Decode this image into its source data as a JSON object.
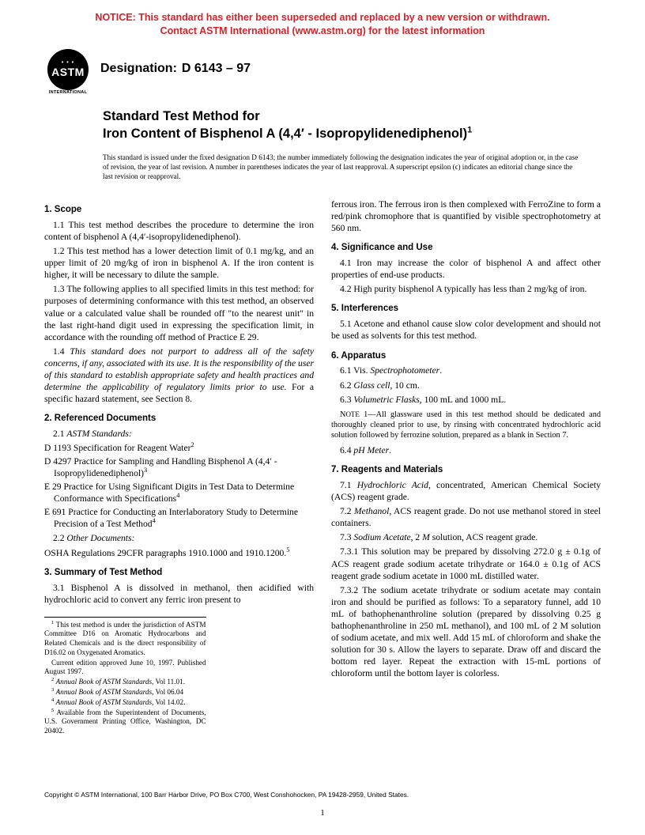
{
  "notice": {
    "line1": "NOTICE: This standard has either been superseded and replaced by a new version or withdrawn.",
    "line2": "Contact ASTM International (www.astm.org) for the latest information",
    "color": "#d2232a"
  },
  "logo": {
    "astm": "ASTM",
    "intl": "INTERNATIONAL"
  },
  "designation": {
    "label": "Designation:",
    "code": "D 6143 – 97"
  },
  "title": {
    "line1": "Standard Test Method for",
    "line2_a": "Iron Content of Bisphenol A (4,4",
    "line2_prime": "′",
    "line2_b": " - Isopropylidenediphenol)",
    "sup": "1"
  },
  "issued_note": "This standard is issued under the fixed designation D 6143; the number immediately following the designation indicates the year of original adoption or, in the case of revision, the year of last revision. A number in parentheses indicates the year of last reapproval. A superscript epsilon (ϵ) indicates an editorial change since the last revision or reapproval.",
  "left": {
    "s1": {
      "h": "1. Scope",
      "p1": "1.1 This test method describes the procedure to determine the iron content of bisphenol A (4,4′-isopropylidenediphenol).",
      "p2": "1.2 This test method has a lower detection limit of 0.1 mg/kg, and an upper limit of 20 mg/kg of iron in bisphenol A. If the iron content is higher, it will be necessary to dilute the sample.",
      "p3": "1.3 The following applies to all specified limits in this test method: for purposes of determining conformance with this test method, an observed value or a calculated value shall be rounded off \"to the nearest unit\" in the last right-hand digit used in expressing the specification limit, in accordance with the rounding off method of Practice E 29.",
      "p4a": "1.4 ",
      "p4b_italic": "This standard does not purport to address all of the safety concerns, if any, associated with its use. It is the responsibility of the user of this standard to establish appropriate safety and health practices and determine the applicability of regulatory limits prior to use.",
      "p4c": " For a specific hazard statement, see Section 8."
    },
    "s2": {
      "h": "2. Referenced Documents",
      "p1a": "2.1 ",
      "p1b_italic": "ASTM Standards:",
      "r1": "D 1193 Specification for Reagent Water",
      "r1s": "2",
      "r2": "D 4297 Practice for Sampling and Handling Bisphenol A (4,4′ - Isopropylidenediphenol)",
      "r2s": "3",
      "r3": "E 29 Practice for Using Significant Digits in Test Data to Determine Conformance with Specifications",
      "r3s": "4",
      "r4": "E 691 Practice for Conducting an Interlaboratory Study to Determine Precision of a Test Method",
      "r4s": "4",
      "p2a": "2.2 ",
      "p2b_italic": "Other Documents:",
      "r5": "OSHA Regulations 29CFR paragraphs 1910.1000 and 1910.1200.",
      "r5s": "5"
    },
    "s3": {
      "h": "3. Summary of Test Method",
      "p1": "3.1 Bisphenol A is dissolved in methanol, then acidified with hydrochloric acid to convert any ferric iron present to"
    },
    "fn": {
      "f1": "1 This test method is under the jurisdiction of ASTM Committee D16 on Aromatic Hydrocarbons and Related Chemicals and is the direct responsibility of D16.02 on Oxygenated Aromatics.",
      "f1b": "Current edition approved June 10, 1997. Published August 1997.",
      "f2": "2 Annual Book of ASTM Standards, Vol 11.01.",
      "f3": "3 Annual Book of ASTM Standards, Vol 06.04",
      "f4": "4 Annual Book of ASTM Standards, Vol 14.02.",
      "f5": "5 Available from the Superintendent of Documents, U.S. Government Printing Office, Washington, DC 20402."
    }
  },
  "right": {
    "cont": "ferrous iron. The ferrous iron is then complexed with FerroZine to form a red/pink chromophore that is quantified by visible spectrophotometry at 560 nm.",
    "s4": {
      "h": "4. Significance and Use",
      "p1": "4.1 Iron may increase the color of bisphenol A and affect other properties of end-use products.",
      "p2": "4.2 High purity bisphenol A typically has less than 2 mg/kg of iron."
    },
    "s5": {
      "h": "5. Interferences",
      "p1": "5.1 Acetone and ethanol cause slow color development and should not be used as solvents for this test method."
    },
    "s6": {
      "h": "6. Apparatus",
      "p1a": "6.1 Vis. ",
      "p1b": "Spectrophotometer",
      "p1c": ".",
      "p2a": "6.2 ",
      "p2b": "Glass cell",
      "p2c": ", 10 cm.",
      "p3a": "6.3 ",
      "p3b": "Volumetric Flasks",
      "p3c": ", 100 mL and 1000 mL.",
      "note": "NOTE 1—All glassware used in this test method should be dedicated and thoroughly cleaned prior to use, by rinsing with concentrated hydrochloric acid solution followed by ferrozine solution, prepared as a blank in Section 7.",
      "p4a": "6.4 ",
      "p4b": "pH Meter",
      "p4c": "."
    },
    "s7": {
      "h": "7. Reagents and Materials",
      "p1a": "7.1 ",
      "p1b": "Hydrochloric Acid",
      "p1c": ", concentrated, American Chemical Society (ACS) reagent grade.",
      "p2a": "7.2 ",
      "p2b": "Methanol",
      "p2c": ", ACS reagent grade. Do not use methanol stored in steel containers.",
      "p3a": "7.3 ",
      "p3b": "Sodium Acetate",
      "p3c": ", 2 ",
      "p3d": "M",
      "p3e": " solution, ACS reagent grade.",
      "p31": "7.3.1 This solution may be prepared by dissolving 272.0 g ± 0.1g of ACS reagent grade sodium acetate trihydrate or 164.0 ± 0.1g of ACS reagent grade sodium acetate in 1000 mL distilled water.",
      "p32": "7.3.2 The sodium acetate trihydrate or sodium acetate may contain iron and should be purified as follows: To a separatory funnel, add 10 mL of bathophenanthroline solution (prepared by dissolving 0.25 g bathophenanthroline in 250 mL methanol), and 100 mL of 2 M solution of sodium acetate, and mix well. Add 15 mL of chloroform and shake the solution for 30 s. Allow the layers to separate. Draw off and discard the bottom red layer. Repeat the extraction with 15-mL portions of chloroform until the bottom layer is colorless."
    }
  },
  "copyright": "Copyright © ASTM International, 100 Barr Harbor Drive, PO Box C700, West Conshohocken, PA 19428-2959, United States.",
  "page": "1"
}
